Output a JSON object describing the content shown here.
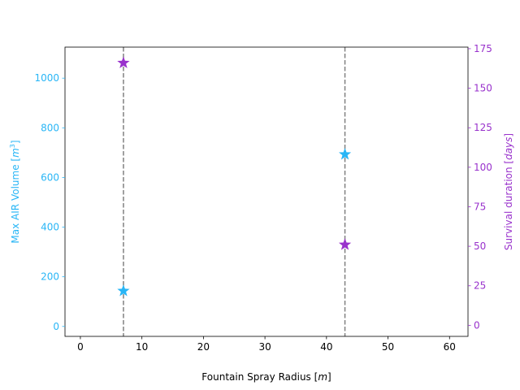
{
  "chart_data": {
    "type": "scatter",
    "title": "",
    "xlabel": "Fountain Spray Radius [m]",
    "ylabel_left": "Max AIR Volume [m3]",
    "ylabel_right": "Survival duration [days]",
    "xlim": [
      -2.5,
      63
    ],
    "ylim_left": [
      -40,
      1125
    ],
    "ylim_right": [
      -7,
      176
    ],
    "x_ticks": [
      0,
      10,
      20,
      30,
      40,
      50,
      60
    ],
    "y_left_ticks": [
      0,
      200,
      400,
      600,
      800,
      1000
    ],
    "y_right_ticks": [
      0,
      25,
      50,
      75,
      100,
      125,
      150,
      175
    ],
    "vertical_lines": [
      7,
      43
    ],
    "grid": false,
    "legend": "none",
    "colors": {
      "left": "#29b6f6",
      "right": "#9932cc",
      "vline": "#808080",
      "axis": "#000000"
    },
    "series": [
      {
        "axis": "left",
        "marker": "star",
        "x": [
          7,
          43
        ],
        "y": [
          143,
          693
        ]
      },
      {
        "axis": "right",
        "marker": "star",
        "x": [
          7,
          43
        ],
        "y": [
          166,
          51
        ]
      }
    ]
  }
}
